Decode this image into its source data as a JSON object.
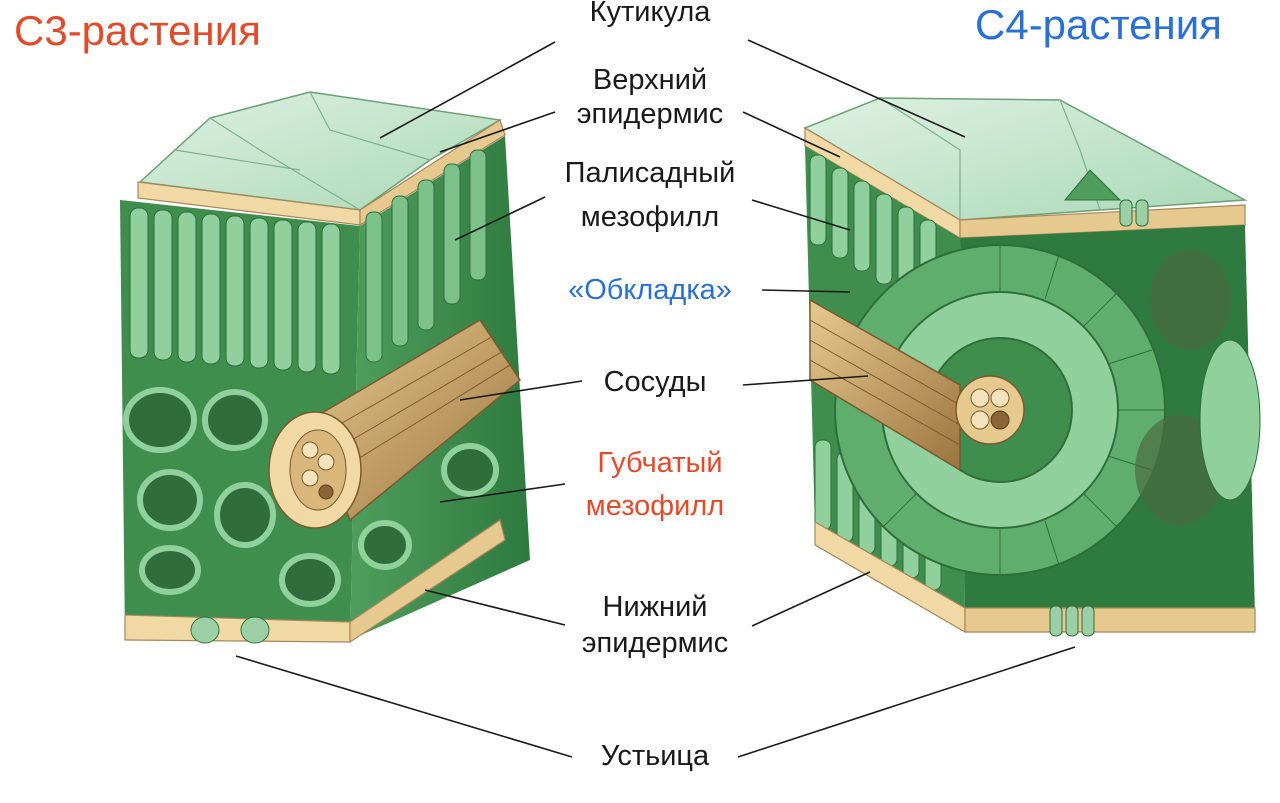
{
  "titles": {
    "c3": "С3-растения",
    "c4": "С4-растения"
  },
  "labels": {
    "cuticle": "Кутикула",
    "upper_epidermis_1": "Верхний",
    "upper_epidermis_2": "эпидермис",
    "palisade_1": "Палисадный",
    "palisade_2": "мезофилл",
    "bundle_sheath": "«Обкладка»",
    "vessels": "Сосуды",
    "spongy_1": "Губчатый",
    "spongy_2": "мезофилл",
    "lower_epidermis_1": "Нижний",
    "lower_epidermis_2": "эпидермис",
    "stomata": "Устьица"
  },
  "colors": {
    "c3_title": "#e24a2a",
    "c4_title": "#2a6fd6",
    "bundle_sheath_label": "#2a6fd6",
    "spongy_label": "#e24a2a",
    "default_label": "#1a1a1a",
    "epidermis": "#f0d9a4",
    "cuticle_top": "#cfe8d6",
    "mesophyll_light": "#7cc08a",
    "mesophyll_dark": "#2f7a3f",
    "vessel": "#c9a66b"
  }
}
